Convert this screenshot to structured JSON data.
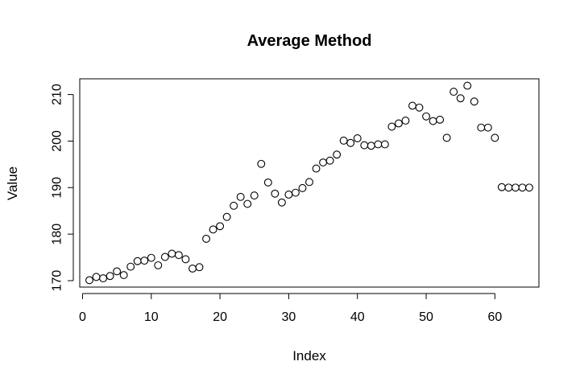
{
  "chart_data": {
    "type": "scatter",
    "title": "Average Method",
    "xlabel": "Index",
    "ylabel": "Value",
    "xlim": [
      1,
      65
    ],
    "ylim": [
      170,
      212
    ],
    "x_ticks": [
      0,
      10,
      20,
      30,
      40,
      50,
      60
    ],
    "y_ticks": [
      170,
      180,
      190,
      200,
      210
    ],
    "grid": false,
    "legend": "none",
    "point_style": "open-circle",
    "x": [
      1,
      2,
      3,
      4,
      5,
      6,
      7,
      8,
      9,
      10,
      11,
      12,
      13,
      14,
      15,
      16,
      17,
      18,
      19,
      20,
      21,
      22,
      23,
      24,
      25,
      26,
      27,
      28,
      29,
      30,
      31,
      32,
      33,
      34,
      35,
      36,
      37,
      38,
      39,
      40,
      41,
      42,
      43,
      44,
      45,
      46,
      47,
      48,
      49,
      50,
      51,
      52,
      53,
      54,
      55,
      56,
      57,
      58,
      59,
      60,
      61,
      62,
      63,
      64,
      65
    ],
    "y": [
      170.1,
      170.8,
      170.5,
      171.0,
      172.0,
      171.2,
      173.0,
      174.2,
      174.3,
      174.9,
      173.3,
      175.1,
      175.8,
      175.5,
      174.6,
      172.6,
      172.9,
      179.0,
      181.0,
      181.7,
      183.7,
      186.1,
      188.0,
      186.5,
      188.3,
      195.1,
      191.1,
      188.7,
      186.8,
      188.5,
      188.9,
      189.9,
      191.2,
      194.1,
      195.4,
      195.8,
      197.1,
      200.1,
      199.6,
      200.6,
      199.1,
      199.0,
      199.3,
      199.3,
      203.1,
      203.8,
      204.4,
      207.6,
      207.2,
      205.3,
      204.3,
      204.6,
      200.7,
      210.6,
      209.2,
      211.9,
      208.5,
      202.9,
      202.9,
      200.7,
      190.1,
      190.0,
      190.0,
      190.0,
      190.0
    ]
  }
}
